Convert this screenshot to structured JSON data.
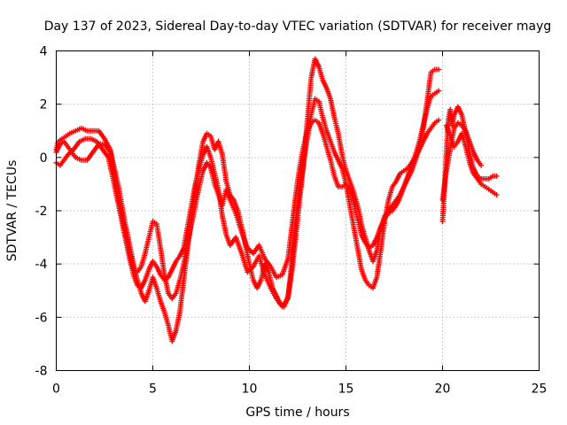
{
  "chart_data": {
    "type": "scatter",
    "title": "Day 137 of 2023, Sidereal Day-to-day VTEC variation (SDTVAR) for receiver mayg",
    "xlabel": "GPS time / hours",
    "ylabel": "SDTVAR / TECUs",
    "xlim": [
      0,
      25
    ],
    "ylim": [
      -8,
      4
    ],
    "x_ticks": [
      0,
      5,
      10,
      15,
      20,
      25
    ],
    "y_ticks": [
      -8,
      -6,
      -4,
      -2,
      0,
      2,
      4
    ],
    "grid": true,
    "legend": "none",
    "marker": "plus",
    "color": "#ff0000",
    "series": [
      {
        "points": [
          [
            0.0,
            0.3
          ],
          [
            0.1,
            0.6
          ],
          [
            0.3,
            0.7
          ],
          [
            0.5,
            0.8
          ],
          [
            0.7,
            0.9
          ],
          [
            1.0,
            1.0
          ],
          [
            1.3,
            1.1
          ],
          [
            1.6,
            1.0
          ],
          [
            1.9,
            1.0
          ],
          [
            2.2,
            1.0
          ],
          [
            2.5,
            0.7
          ],
          [
            2.8,
            0.3
          ],
          [
            3.0,
            -0.4
          ],
          [
            3.2,
            -1.0
          ],
          [
            3.4,
            -1.8
          ],
          [
            3.6,
            -2.6
          ],
          [
            3.8,
            -3.3
          ],
          [
            4.0,
            -4.0
          ],
          [
            4.2,
            -4.6
          ],
          [
            4.4,
            -5.1
          ],
          [
            4.6,
            -5.4
          ],
          [
            4.8,
            -5.0
          ],
          [
            5.0,
            -4.5
          ],
          [
            5.2,
            -4.9
          ],
          [
            5.4,
            -5.4
          ],
          [
            5.6,
            -5.8
          ],
          [
            5.8,
            -6.3
          ],
          [
            6.0,
            -6.9
          ],
          [
            6.2,
            -6.5
          ],
          [
            6.4,
            -5.8
          ],
          [
            6.6,
            -4.6
          ],
          [
            6.8,
            -3.4
          ],
          [
            7.0,
            -2.3
          ],
          [
            7.2,
            -1.2
          ],
          [
            7.4,
            -0.2
          ],
          [
            7.6,
            0.6
          ],
          [
            7.8,
            0.9
          ],
          [
            8.0,
            0.8
          ],
          [
            8.2,
            0.3
          ],
          [
            8.4,
            0.6
          ],
          [
            8.6,
            0.1
          ],
          [
            8.8,
            -0.9
          ],
          [
            9.0,
            -1.4
          ],
          [
            9.2,
            -1.6
          ],
          [
            9.4,
            -2.0
          ],
          [
            9.6,
            -2.6
          ],
          [
            9.8,
            -3.3
          ],
          [
            10.0,
            -4.0
          ],
          [
            10.2,
            -4.6
          ],
          [
            10.4,
            -4.9
          ],
          [
            10.6,
            -4.6
          ],
          [
            10.8,
            -4.0
          ],
          [
            11.0,
            -4.3
          ],
          [
            11.2,
            -4.9
          ],
          [
            11.4,
            -5.2
          ],
          [
            11.6,
            -5.5
          ],
          [
            11.8,
            -5.6
          ],
          [
            12.0,
            -5.2
          ],
          [
            12.2,
            -4.3
          ],
          [
            12.4,
            -3.0
          ],
          [
            12.6,
            -1.6
          ],
          [
            12.8,
            -0.3
          ],
          [
            13.0,
            1.4
          ],
          [
            13.2,
            3.0
          ],
          [
            13.4,
            3.7
          ],
          [
            13.6,
            3.4
          ],
          [
            13.8,
            2.9
          ],
          [
            14.0,
            2.6
          ],
          [
            14.2,
            2.2
          ],
          [
            14.4,
            1.5
          ],
          [
            14.6,
            0.9
          ],
          [
            14.8,
            0.1
          ],
          [
            15.0,
            -0.5
          ],
          [
            15.2,
            -0.9
          ],
          [
            15.4,
            -1.3
          ],
          [
            15.6,
            -1.8
          ],
          [
            15.8,
            -2.5
          ],
          [
            16.0,
            -3.0
          ],
          [
            16.2,
            -3.5
          ],
          [
            16.4,
            -3.9
          ],
          [
            16.6,
            -3.5
          ],
          [
            16.8,
            -2.7
          ],
          [
            17.0,
            -2.2
          ],
          [
            17.2,
            -2.0
          ],
          [
            17.4,
            -1.8
          ],
          [
            17.6,
            -1.6
          ],
          [
            17.8,
            -1.4
          ],
          [
            18.0,
            -1.1
          ],
          [
            18.2,
            -0.8
          ],
          [
            18.4,
            -0.5
          ],
          [
            18.6,
            -0.1
          ],
          [
            18.8,
            0.4
          ],
          [
            19.0,
            1.1
          ],
          [
            19.2,
            2.1
          ],
          [
            19.4,
            3.2
          ],
          [
            19.6,
            3.3
          ],
          [
            19.8,
            3.3
          ]
        ]
      },
      {
        "points": [
          [
            0.0,
            0.2
          ],
          [
            0.2,
            0.5
          ],
          [
            0.4,
            0.6
          ],
          [
            0.6,
            0.4
          ],
          [
            0.8,
            0.2
          ],
          [
            1.0,
            0.0
          ],
          [
            1.3,
            -0.1
          ],
          [
            1.6,
            -0.1
          ],
          [
            1.9,
            0.2
          ],
          [
            2.2,
            0.5
          ],
          [
            2.5,
            0.5
          ],
          [
            2.8,
            0.2
          ],
          [
            3.0,
            -0.6
          ],
          [
            3.2,
            -1.5
          ],
          [
            3.4,
            -2.2
          ],
          [
            3.6,
            -2.9
          ],
          [
            3.8,
            -3.6
          ],
          [
            4.0,
            -4.2
          ],
          [
            4.2,
            -4.3
          ],
          [
            4.4,
            -4.1
          ],
          [
            4.6,
            -3.6
          ],
          [
            4.8,
            -3.0
          ],
          [
            5.0,
            -2.4
          ],
          [
            5.2,
            -2.5
          ],
          [
            5.4,
            -3.4
          ],
          [
            5.6,
            -4.4
          ],
          [
            5.8,
            -5.1
          ],
          [
            6.0,
            -5.3
          ],
          [
            6.2,
            -5.1
          ],
          [
            6.4,
            -4.6
          ],
          [
            6.6,
            -4.0
          ],
          [
            6.8,
            -3.2
          ],
          [
            7.0,
            -2.5
          ],
          [
            7.2,
            -1.8
          ],
          [
            7.4,
            -1.1
          ],
          [
            7.6,
            -0.5
          ],
          [
            7.8,
            -0.2
          ],
          [
            8.0,
            -0.4
          ],
          [
            8.2,
            -1.0
          ],
          [
            8.4,
            -1.4
          ],
          [
            8.6,
            -1.8
          ],
          [
            8.8,
            -1.2
          ],
          [
            9.0,
            -1.6
          ],
          [
            9.3,
            -2.1
          ],
          [
            9.6,
            -2.8
          ],
          [
            9.9,
            -3.4
          ],
          [
            10.2,
            -3.6
          ],
          [
            10.5,
            -3.3
          ],
          [
            10.8,
            -3.8
          ],
          [
            11.1,
            -4.1
          ],
          [
            11.4,
            -4.5
          ],
          [
            11.7,
            -4.4
          ],
          [
            12.0,
            -3.8
          ],
          [
            12.2,
            -2.6
          ],
          [
            12.4,
            -1.4
          ],
          [
            12.6,
            -0.4
          ],
          [
            12.8,
            0.4
          ],
          [
            13.0,
            1.0
          ],
          [
            13.2,
            1.3
          ],
          [
            13.4,
            1.4
          ],
          [
            13.6,
            1.3
          ],
          [
            13.8,
            0.9
          ],
          [
            14.0,
            0.4
          ],
          [
            14.2,
            -0.1
          ],
          [
            14.4,
            -0.7
          ],
          [
            14.6,
            -1.1
          ],
          [
            14.8,
            -1.1
          ],
          [
            15.0,
            -1.0
          ],
          [
            15.2,
            -1.2
          ],
          [
            15.4,
            -1.7
          ],
          [
            15.6,
            -2.3
          ],
          [
            15.8,
            -2.9
          ],
          [
            16.0,
            -3.2
          ],
          [
            16.2,
            -3.4
          ],
          [
            16.4,
            -3.3
          ],
          [
            16.6,
            -3.0
          ],
          [
            16.8,
            -2.6
          ],
          [
            17.0,
            -2.3
          ],
          [
            17.2,
            -2.1
          ],
          [
            17.4,
            -2.0
          ],
          [
            17.6,
            -1.8
          ],
          [
            17.8,
            -1.5
          ],
          [
            18.0,
            -1.1
          ],
          [
            18.2,
            -0.7
          ],
          [
            18.4,
            -0.3
          ],
          [
            18.6,
            0.1
          ],
          [
            18.8,
            0.6
          ],
          [
            19.0,
            1.2
          ],
          [
            19.2,
            1.8
          ],
          [
            19.4,
            2.3
          ],
          [
            19.6,
            2.4
          ],
          [
            19.8,
            2.5
          ]
        ]
      },
      {
        "points": [
          [
            0.0,
            -0.2
          ],
          [
            0.2,
            -0.3
          ],
          [
            0.4,
            -0.1
          ],
          [
            0.6,
            0.1
          ],
          [
            0.9,
            0.3
          ],
          [
            1.2,
            0.6
          ],
          [
            1.5,
            0.7
          ],
          [
            1.8,
            0.7
          ],
          [
            2.1,
            0.6
          ],
          [
            2.4,
            0.3
          ],
          [
            2.7,
            0.0
          ],
          [
            3.0,
            -1.0
          ],
          [
            3.2,
            -1.7
          ],
          [
            3.4,
            -2.4
          ],
          [
            3.6,
            -3.1
          ],
          [
            3.8,
            -3.8
          ],
          [
            4.0,
            -4.4
          ],
          [
            4.2,
            -4.8
          ],
          [
            4.4,
            -4.9
          ],
          [
            4.6,
            -4.6
          ],
          [
            4.8,
            -4.2
          ],
          [
            5.0,
            -3.9
          ],
          [
            5.2,
            -4.1
          ],
          [
            5.4,
            -4.4
          ],
          [
            5.6,
            -4.6
          ],
          [
            5.8,
            -4.5
          ],
          [
            6.0,
            -4.2
          ],
          [
            6.2,
            -3.9
          ],
          [
            6.4,
            -3.7
          ],
          [
            6.6,
            -3.4
          ],
          [
            6.8,
            -2.6
          ],
          [
            7.0,
            -1.8
          ],
          [
            7.2,
            -1.0
          ],
          [
            7.4,
            -0.4
          ],
          [
            7.6,
            0.1
          ],
          [
            7.8,
            0.4
          ],
          [
            8.0,
            0.0
          ],
          [
            8.2,
            -0.6
          ],
          [
            8.4,
            -1.2
          ],
          [
            8.6,
            -2.2
          ],
          [
            8.8,
            -2.9
          ],
          [
            9.0,
            -3.3
          ],
          [
            9.3,
            -3.0
          ],
          [
            9.6,
            -3.6
          ],
          [
            9.9,
            -4.3
          ],
          [
            10.2,
            -4.1
          ],
          [
            10.5,
            -3.7
          ],
          [
            10.8,
            -4.4
          ],
          [
            11.1,
            -4.9
          ],
          [
            11.4,
            -5.3
          ],
          [
            11.7,
            -5.6
          ],
          [
            12.0,
            -5.3
          ],
          [
            12.2,
            -3.9
          ],
          [
            12.4,
            -2.4
          ],
          [
            12.6,
            -1.2
          ],
          [
            12.8,
            -0.2
          ],
          [
            13.0,
            0.7
          ],
          [
            13.2,
            1.6
          ],
          [
            13.4,
            2.2
          ],
          [
            13.6,
            2.1
          ],
          [
            13.8,
            1.5
          ],
          [
            14.0,
            1.0
          ],
          [
            14.2,
            0.6
          ],
          [
            14.4,
            0.2
          ],
          [
            14.6,
            -0.1
          ],
          [
            14.8,
            -0.4
          ],
          [
            15.0,
            -1.0
          ],
          [
            15.2,
            -1.8
          ],
          [
            15.4,
            -2.6
          ],
          [
            15.6,
            -3.4
          ],
          [
            15.8,
            -4.2
          ],
          [
            16.0,
            -4.6
          ],
          [
            16.2,
            -4.8
          ],
          [
            16.4,
            -4.9
          ],
          [
            16.6,
            -4.5
          ],
          [
            16.8,
            -3.5
          ],
          [
            17.0,
            -2.4
          ],
          [
            17.2,
            -1.6
          ],
          [
            17.4,
            -1.1
          ],
          [
            17.6,
            -0.9
          ],
          [
            17.8,
            -0.6
          ],
          [
            18.0,
            -0.5
          ],
          [
            18.2,
            -0.4
          ],
          [
            18.4,
            -0.2
          ],
          [
            18.6,
            0.0
          ],
          [
            18.8,
            0.3
          ],
          [
            19.0,
            0.6
          ],
          [
            19.2,
            0.9
          ],
          [
            19.4,
            1.1
          ],
          [
            19.6,
            1.3
          ],
          [
            19.8,
            1.4
          ]
        ]
      },
      {
        "points": [
          [
            20.0,
            -2.4
          ],
          [
            20.1,
            -1.2
          ],
          [
            20.2,
            0.2
          ],
          [
            20.3,
            1.4
          ],
          [
            20.4,
            1.8
          ],
          [
            20.5,
            1.2
          ],
          [
            20.6,
            1.6
          ],
          [
            20.8,
            1.9
          ],
          [
            21.0,
            1.6
          ],
          [
            21.2,
            0.9
          ],
          [
            21.4,
            0.2
          ],
          [
            21.6,
            -0.4
          ],
          [
            21.8,
            -0.7
          ],
          [
            22.0,
            -0.8
          ],
          [
            22.2,
            -0.8
          ],
          [
            22.4,
            -0.8
          ],
          [
            22.6,
            -0.7
          ],
          [
            22.8,
            -0.7
          ],
          [
            20.2,
            1.2
          ],
          [
            20.4,
            0.8
          ],
          [
            20.6,
            0.4
          ],
          [
            20.8,
            0.6
          ],
          [
            21.0,
            0.9
          ],
          [
            21.2,
            0.4
          ],
          [
            21.4,
            -0.2
          ],
          [
            21.6,
            -0.6
          ],
          [
            21.8,
            -0.8
          ],
          [
            22.0,
            -1.0
          ],
          [
            22.2,
            -1.1
          ],
          [
            22.4,
            -1.2
          ],
          [
            22.6,
            -1.3
          ],
          [
            22.8,
            -1.4
          ],
          [
            20.0,
            -1.6
          ],
          [
            20.2,
            -0.5
          ],
          [
            20.4,
            0.3
          ],
          [
            20.6,
            1.1
          ],
          [
            20.8,
            1.3
          ],
          [
            21.0,
            1.2
          ],
          [
            21.2,
            1.0
          ],
          [
            21.4,
            0.6
          ],
          [
            21.6,
            0.2
          ],
          [
            21.8,
            -0.1
          ],
          [
            22.0,
            -0.3
          ]
        ]
      }
    ]
  }
}
